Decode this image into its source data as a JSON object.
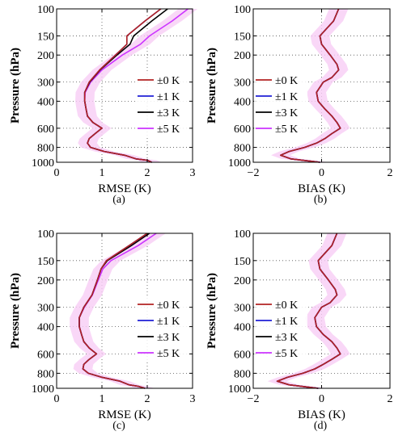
{
  "figure": {
    "panel_captions": [
      "(a)",
      "(b)",
      "(c)",
      "(d)"
    ],
    "legend_labels": [
      "±0 K",
      "±1 K",
      "±3 K",
      "±5 K"
    ],
    "colors": {
      "series_0K": "#b22222",
      "series_1K": "#1f1fd6",
      "series_3K": "#000000",
      "series_5K": "#cc33ff",
      "band": "#f7cdf5"
    }
  },
  "chart_data": [
    {
      "panel": "a",
      "type": "line",
      "xlabel": "RMSE  (K)",
      "ylabel": "Pressure  (hPa)",
      "xlim": [
        0,
        3
      ],
      "xticks": [
        0,
        1,
        2,
        3
      ],
      "ylim": [
        1000,
        100
      ],
      "yscale": "log",
      "yticks": [
        100,
        150,
        200,
        300,
        400,
        600,
        800,
        1000
      ],
      "grid": "dotted",
      "legend": "right",
      "pressure": [
        100,
        120,
        150,
        170,
        200,
        250,
        300,
        350,
        400,
        450,
        500,
        550,
        600,
        650,
        700,
        750,
        800,
        850,
        900,
        950,
        970,
        1000
      ],
      "series": [
        {
          "name": "±0 K",
          "values": [
            2.3,
            1.95,
            1.55,
            1.55,
            1.3,
            0.95,
            0.72,
            0.62,
            0.62,
            0.65,
            0.68,
            0.8,
            1.0,
            0.85,
            0.72,
            0.68,
            0.75,
            1.05,
            1.5,
            1.75,
            2.0,
            2.1
          ]
        },
        {
          "name": "±1 K",
          "values": [
            2.3,
            1.95,
            1.55,
            1.55,
            1.3,
            0.95,
            0.72,
            0.62,
            0.62,
            0.65,
            0.68,
            0.8,
            1.0,
            0.85,
            0.72,
            0.68,
            0.75,
            1.05,
            1.5,
            1.75,
            2.0,
            2.1
          ]
        },
        {
          "name": "±3 K",
          "values": [
            2.45,
            2.1,
            1.7,
            1.62,
            1.33,
            0.96,
            0.73,
            0.62,
            0.62,
            0.65,
            0.68,
            0.8,
            1.0,
            0.85,
            0.72,
            0.68,
            0.75,
            1.05,
            1.5,
            1.75,
            2.0,
            2.1
          ]
        },
        {
          "name": "±5 K",
          "values": [
            2.9,
            2.55,
            2.05,
            1.85,
            1.45,
            1.0,
            0.75,
            0.63,
            0.62,
            0.65,
            0.68,
            0.8,
            1.0,
            0.85,
            0.72,
            0.68,
            0.75,
            1.05,
            1.5,
            1.75,
            2.0,
            2.1
          ]
        }
      ]
    },
    {
      "panel": "b",
      "type": "line",
      "xlabel": "BIAS  (K)",
      "ylabel": "Pressure  (hPa)",
      "xlim": [
        -2,
        2
      ],
      "xticks": [
        -2,
        0,
        2
      ],
      "ylim": [
        1000,
        100
      ],
      "yscale": "log",
      "yticks": [
        100,
        150,
        200,
        300,
        400,
        600,
        800,
        1000
      ],
      "grid": "dotted",
      "legend": "left",
      "pressure": [
        100,
        120,
        150,
        170,
        200,
        230,
        250,
        280,
        300,
        350,
        400,
        450,
        500,
        550,
        600,
        650,
        700,
        750,
        800,
        850,
        900,
        950,
        1000
      ],
      "series": [
        {
          "name": "±0 K",
          "values": [
            0.5,
            0.35,
            -0.05,
            0.0,
            0.25,
            0.45,
            0.5,
            0.3,
            0.05,
            -0.15,
            -0.1,
            0.1,
            0.3,
            0.45,
            0.55,
            0.3,
            0.1,
            -0.15,
            -0.5,
            -0.95,
            -1.2,
            -0.9,
            -0.05
          ]
        },
        {
          "name": "±1 K",
          "values": [
            0.5,
            0.35,
            -0.05,
            0.0,
            0.25,
            0.45,
            0.5,
            0.3,
            0.05,
            -0.15,
            -0.1,
            0.1,
            0.3,
            0.45,
            0.55,
            0.3,
            0.1,
            -0.15,
            -0.5,
            -0.95,
            -1.2,
            -0.9,
            -0.05
          ]
        },
        {
          "name": "±3 K",
          "values": [
            0.5,
            0.35,
            -0.05,
            0.0,
            0.25,
            0.45,
            0.5,
            0.3,
            0.05,
            -0.15,
            -0.1,
            0.1,
            0.3,
            0.45,
            0.55,
            0.3,
            0.1,
            -0.15,
            -0.5,
            -0.95,
            -1.2,
            -0.9,
            -0.05
          ]
        },
        {
          "name": "±5 K",
          "values": [
            0.5,
            0.35,
            -0.05,
            0.0,
            0.25,
            0.45,
            0.5,
            0.3,
            0.05,
            -0.15,
            -0.1,
            0.1,
            0.3,
            0.45,
            0.55,
            0.3,
            0.1,
            -0.15,
            -0.5,
            -0.95,
            -1.2,
            -0.9,
            -0.05
          ]
        }
      ]
    },
    {
      "panel": "c",
      "type": "line",
      "xlabel": "RMSE  (K)",
      "ylabel": "Pressure  (hPa)",
      "xlim": [
        0,
        3
      ],
      "xticks": [
        0,
        1,
        2,
        3
      ],
      "ylim": [
        1000,
        100
      ],
      "yscale": "log",
      "yticks": [
        100,
        150,
        200,
        300,
        400,
        600,
        800,
        1000
      ],
      "grid": "dotted",
      "legend": "right",
      "pressure": [
        100,
        120,
        150,
        170,
        200,
        250,
        300,
        350,
        400,
        450,
        500,
        550,
        600,
        650,
        700,
        750,
        800,
        850,
        900,
        950,
        970,
        1000
      ],
      "series": [
        {
          "name": "±0 K",
          "values": [
            2.0,
            1.6,
            1.1,
            0.98,
            0.9,
            0.78,
            0.6,
            0.5,
            0.5,
            0.55,
            0.6,
            0.72,
            0.88,
            0.72,
            0.6,
            0.58,
            0.7,
            1.0,
            1.4,
            1.6,
            1.8,
            1.95
          ]
        },
        {
          "name": "±1 K",
          "values": [
            2.0,
            1.6,
            1.1,
            0.98,
            0.9,
            0.78,
            0.6,
            0.5,
            0.5,
            0.55,
            0.6,
            0.72,
            0.88,
            0.72,
            0.6,
            0.58,
            0.7,
            1.0,
            1.4,
            1.6,
            1.8,
            1.95
          ]
        },
        {
          "name": "±3 K",
          "values": [
            2.05,
            1.65,
            1.12,
            0.98,
            0.9,
            0.78,
            0.6,
            0.5,
            0.5,
            0.55,
            0.6,
            0.72,
            0.88,
            0.72,
            0.6,
            0.58,
            0.7,
            1.0,
            1.4,
            1.6,
            1.8,
            1.95
          ]
        },
        {
          "name": "±5 K",
          "values": [
            2.2,
            1.8,
            1.2,
            1.02,
            0.92,
            0.79,
            0.61,
            0.5,
            0.5,
            0.55,
            0.6,
            0.72,
            0.88,
            0.72,
            0.6,
            0.58,
            0.7,
            1.0,
            1.4,
            1.6,
            1.8,
            1.95
          ]
        }
      ]
    },
    {
      "panel": "d",
      "type": "line",
      "xlabel": "BIAS  (K)",
      "ylabel": "Pressure  (hPa)",
      "xlim": [
        -2,
        2
      ],
      "xticks": [
        -2,
        0,
        2
      ],
      "ylim": [
        1000,
        100
      ],
      "yscale": "log",
      "yticks": [
        100,
        150,
        200,
        300,
        400,
        600,
        800,
        1000
      ],
      "grid": "dotted",
      "legend": "left",
      "pressure": [
        100,
        120,
        150,
        170,
        200,
        230,
        250,
        280,
        300,
        350,
        400,
        450,
        500,
        550,
        600,
        650,
        700,
        750,
        800,
        850,
        900,
        950,
        1000
      ],
      "series": [
        {
          "name": "±0 K",
          "values": [
            0.45,
            0.3,
            -0.1,
            -0.05,
            0.2,
            0.4,
            0.45,
            0.25,
            0.0,
            -0.2,
            -0.15,
            0.05,
            0.3,
            0.45,
            0.55,
            0.3,
            0.05,
            -0.2,
            -0.55,
            -1.0,
            -1.3,
            -0.95,
            -0.1
          ]
        },
        {
          "name": "±1 K",
          "values": [
            0.45,
            0.3,
            -0.1,
            -0.05,
            0.2,
            0.4,
            0.45,
            0.25,
            0.0,
            -0.2,
            -0.15,
            0.05,
            0.3,
            0.45,
            0.55,
            0.3,
            0.05,
            -0.2,
            -0.55,
            -1.0,
            -1.3,
            -0.95,
            -0.1
          ]
        },
        {
          "name": "±3 K",
          "values": [
            0.45,
            0.3,
            -0.1,
            -0.05,
            0.2,
            0.4,
            0.45,
            0.25,
            0.0,
            -0.2,
            -0.15,
            0.05,
            0.3,
            0.45,
            0.55,
            0.3,
            0.05,
            -0.2,
            -0.55,
            -1.0,
            -1.3,
            -0.95,
            -0.1
          ]
        },
        {
          "name": "±5 K",
          "values": [
            0.45,
            0.3,
            -0.1,
            -0.05,
            0.2,
            0.4,
            0.45,
            0.25,
            0.0,
            -0.2,
            -0.15,
            0.05,
            0.3,
            0.45,
            0.55,
            0.3,
            0.05,
            -0.2,
            -0.55,
            -1.0,
            -1.3,
            -0.95,
            -0.1
          ]
        }
      ]
    }
  ]
}
